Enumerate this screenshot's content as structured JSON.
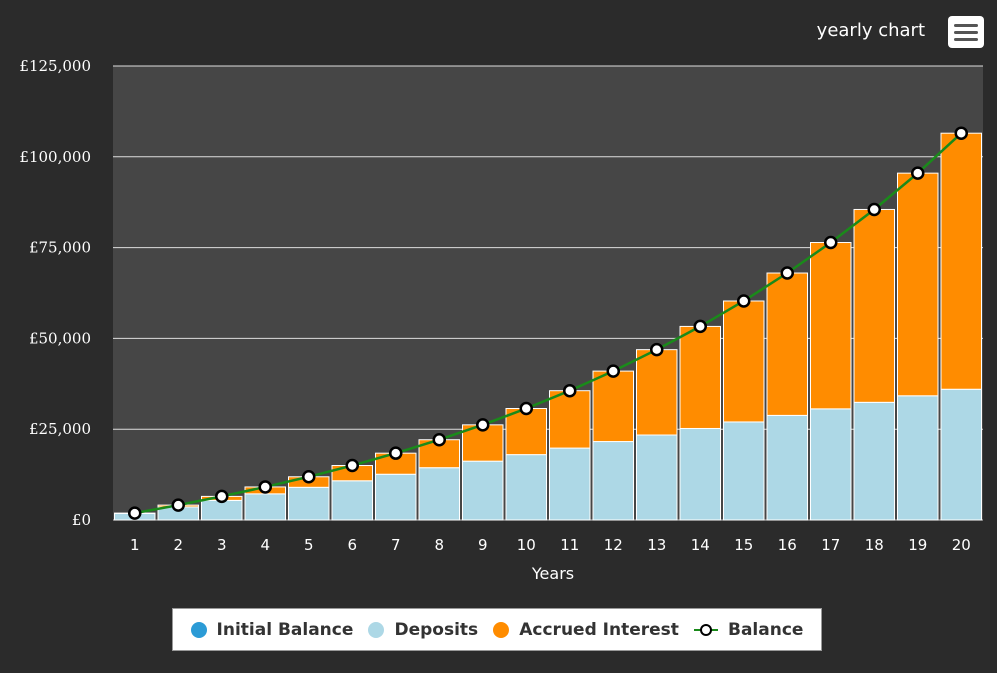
{
  "header": {
    "title": "yearly chart",
    "menu_icon": "hamburger-menu-icon"
  },
  "colors": {
    "background": "#2b2b2b",
    "plot_background": "#464646",
    "initial_balance": "#2b9bd6",
    "deposits": "#add8e6",
    "accrued_interest": "#ff8c00",
    "balance_line": "#1a8a1a",
    "balance_marker_fill": "#ffffff",
    "balance_marker_stroke": "#000000"
  },
  "chart_data": {
    "type": "bar",
    "stacked": true,
    "xlabel": "Years",
    "ylabel": "",
    "ylim": [
      0,
      125000
    ],
    "yticks": [
      0,
      25000,
      50000,
      75000,
      100000,
      125000
    ],
    "ytick_labels": [
      "£0",
      "£25,000",
      "£50,000",
      "£75,000",
      "£100,000",
      "£125,000"
    ],
    "grid": true,
    "legend_position": "bottom-center",
    "categories": [
      "1",
      "2",
      "3",
      "4",
      "5",
      "6",
      "7",
      "8",
      "9",
      "10",
      "11",
      "12",
      "13",
      "14",
      "15",
      "16",
      "17",
      "18",
      "19",
      "20"
    ],
    "series": [
      {
        "name": "Initial Balance",
        "type": "bar",
        "values": [
          0,
          0,
          0,
          0,
          0,
          0,
          0,
          0,
          0,
          0,
          0,
          0,
          0,
          0,
          0,
          0,
          0,
          0,
          0,
          0
        ]
      },
      {
        "name": "Deposits",
        "type": "bar",
        "values": [
          1800,
          3600,
          5400,
          7200,
          9000,
          10800,
          12600,
          14400,
          16200,
          18000,
          19800,
          21600,
          23400,
          25200,
          27000,
          28800,
          30600,
          32400,
          34200,
          36000
        ]
      },
      {
        "name": "Accrued Interest",
        "type": "bar",
        "values": [
          100,
          500,
          1100,
          1900,
          2900,
          4200,
          5800,
          7700,
          10000,
          12700,
          15800,
          19400,
          23500,
          28100,
          33300,
          39200,
          45800,
          53100,
          61300,
          70500
        ]
      },
      {
        "name": "Balance",
        "type": "line",
        "values": [
          1900,
          4100,
          6500,
          9100,
          11900,
          15000,
          18400,
          22100,
          26200,
          30700,
          35600,
          41000,
          46900,
          53300,
          60300,
          68000,
          76400,
          85500,
          95500,
          106500
        ]
      }
    ]
  },
  "legend": {
    "items": [
      {
        "label": "Initial Balance"
      },
      {
        "label": "Deposits"
      },
      {
        "label": "Accrued Interest"
      },
      {
        "label": "Balance"
      }
    ]
  }
}
